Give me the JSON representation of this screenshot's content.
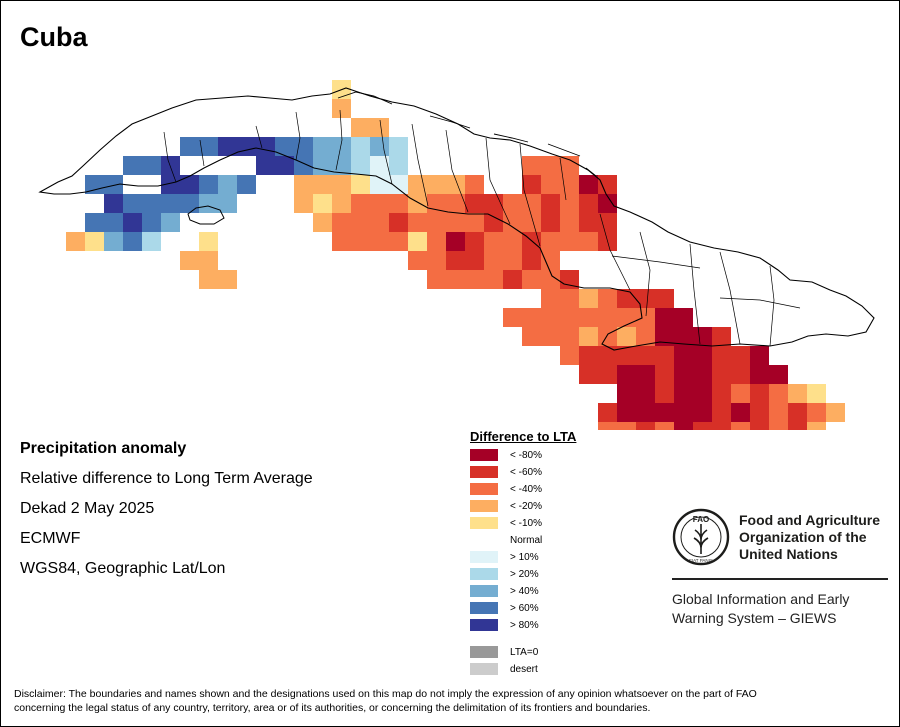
{
  "map": {
    "title": "Cuba",
    "grid_cell_deg": 0.25
  },
  "info": {
    "line1": "Precipitation anomaly",
    "line2": "Relative difference to Long Term Average",
    "line3": "Dekad 2 May 2025",
    "line4": "ECMWF",
    "line5": "WGS84, Geographic Lat/Lon"
  },
  "legend": {
    "title": "Difference to LTA",
    "classes": [
      {
        "label": "< -80%",
        "color": "#a50026"
      },
      {
        "label": "< -60%",
        "color": "#d73027"
      },
      {
        "label": "< -40%",
        "color": "#f46d43"
      },
      {
        "label": "< -20%",
        "color": "#fdae61"
      },
      {
        "label": "< -10%",
        "color": "#fee08b"
      },
      {
        "label": "Normal",
        "color": "#ffffff"
      },
      {
        "label": "> 10%",
        "color": "#e0f3f8"
      },
      {
        "label": "> 20%",
        "color": "#abd9e9"
      },
      {
        "label": "> 40%",
        "color": "#74add1"
      },
      {
        "label": "> 60%",
        "color": "#4575b4"
      },
      {
        "label": "> 80%",
        "color": "#313695"
      }
    ],
    "extra": [
      {
        "label": "LTA=0",
        "color": "#999999"
      },
      {
        "label": "desert",
        "color": "#cccccc"
      }
    ]
  },
  "organization": {
    "name_line1": "Food and Agriculture",
    "name_line2": "Organization of the",
    "name_line3": "United Nations",
    "emblem_text": "FAO",
    "emblem_motto": "FIAT PANIS",
    "system_line1": "Global Information and Early",
    "system_line2": "Warning System – GIEWS"
  },
  "disclaimer": {
    "line1": "Disclaimer: The boundaries and names shown and the designations used on this map do not imply the expression of any opinion whatsoever on the part of FAO",
    "line2": "concerning the legal status of any country, territory, area or of its authorities, or concerning the delimitation of its frontiers and boundaries."
  }
}
